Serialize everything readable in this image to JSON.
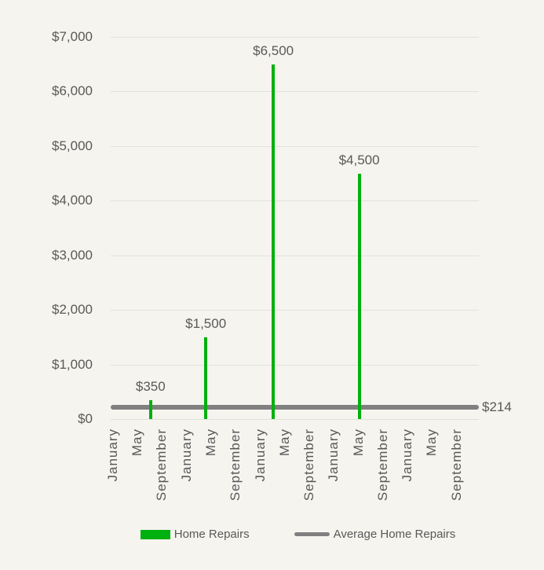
{
  "colors": {
    "background": "#f5f4ef",
    "gridline": "#e2e2dd",
    "text": "#595959",
    "bar_green": "#00b00e",
    "line_gray": "#808080"
  },
  "chart_data": {
    "type": "bar",
    "title": "",
    "grid": true,
    "legend_position": "bottom",
    "x_axis": {
      "unit": "month",
      "total_categories": 60,
      "tick_every_n_categories": 4,
      "tick_labels": [
        "January",
        "May",
        "September",
        "January",
        "May",
        "September",
        "January",
        "May",
        "September",
        "January",
        "May",
        "September",
        "January",
        "May",
        "September"
      ]
    },
    "y_axis": {
      "min": 0,
      "max": 7000,
      "step": 1000,
      "tick_labels": [
        "$0",
        "$1,000",
        "$2,000",
        "$3,000",
        "$4,000",
        "$5,000",
        "$6,000",
        "$7,000"
      ]
    },
    "series": [
      {
        "name": "Home Repairs",
        "type": "bar",
        "color": "#00b00e",
        "points": [
          {
            "month_index": 6,
            "value": 350,
            "data_label": "$350"
          },
          {
            "month_index": 15,
            "value": 1500,
            "data_label": "$1,500"
          },
          {
            "month_index": 26,
            "value": 6500,
            "data_label": "$6,500"
          },
          {
            "month_index": 40,
            "value": 4500,
            "data_label": "$4,500"
          }
        ]
      },
      {
        "name": "Average Home Repairs",
        "type": "line",
        "color": "#808080",
        "value": 214,
        "data_label": "$214"
      }
    ]
  }
}
